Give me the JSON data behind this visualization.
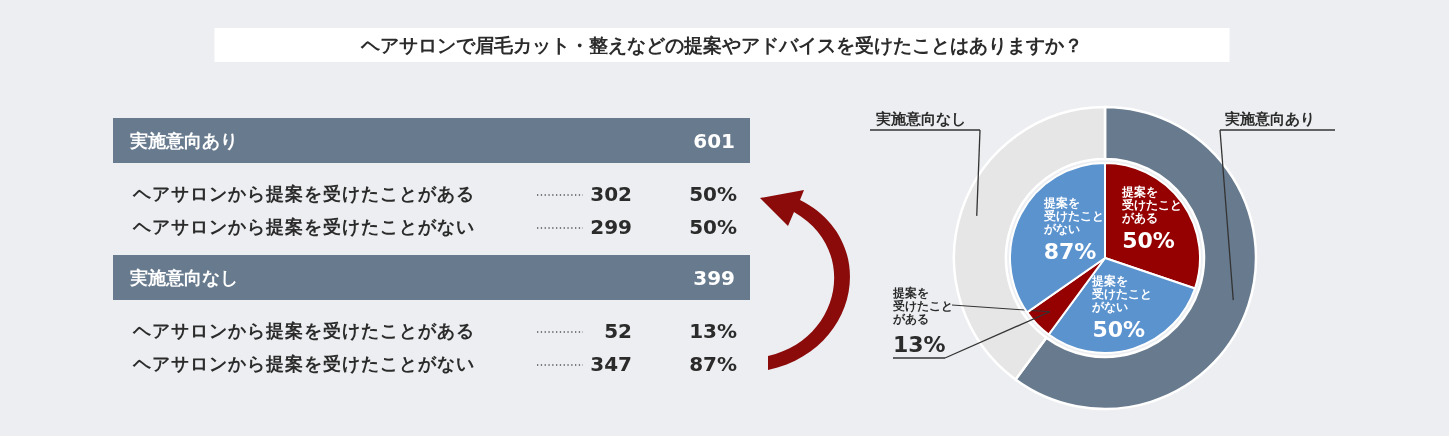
{
  "chart_data": [
    {
      "type": "other",
      "title": "ヘアサロンで眉毛カット・整えなどの提案やアドバイスを受けたことはありますか？",
      "annotations": [
        "実施意向あり",
        "601",
        "ヘアサロンから提案を受けたことがある",
        "302",
        "50%",
        "ヘアサロンから提案を受けたことがない",
        "299",
        "50%",
        "実施意向なし",
        "399",
        "ヘアサロンから提案を受けたことがある",
        "52",
        "13%",
        "ヘアサロンから提案を受けたことがない",
        "347",
        "87%"
      ]
    },
    {
      "type": "donut",
      "categories": [
        "実施意向あり",
        "実施意向なし"
      ],
      "values": [
        60.1,
        39.9
      ],
      "colors": [
        "#687b8e",
        "#e6e6e6"
      ]
    },
    {
      "type": "pie",
      "categories": [
        "提案を受けたことがある",
        "提案を受けたことがない",
        "提案を受けたことがある",
        "提案を受けたことがない"
      ],
      "values": [
        30.2,
        29.9,
        5.2,
        34.7
      ],
      "annotations": [
        "50%",
        "50%",
        "13%",
        "87%"
      ],
      "colors": [
        "#950000",
        "#5b93cf",
        "#950000",
        "#5b93cf"
      ]
    }
  ]
}
